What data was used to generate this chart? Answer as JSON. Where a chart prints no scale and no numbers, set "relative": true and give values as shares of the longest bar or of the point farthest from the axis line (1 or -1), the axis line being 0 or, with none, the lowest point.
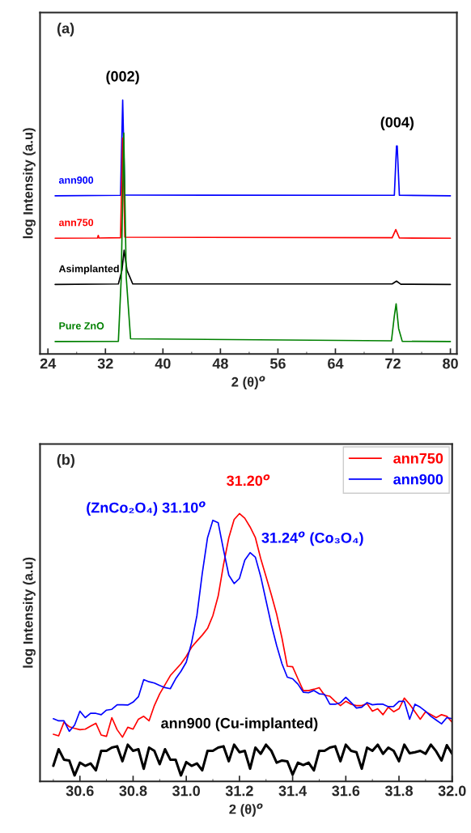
{
  "chart_data": [
    {
      "type": "line",
      "relative": true,
      "xlim": [
        22.9,
        80.9
      ],
      "xticks": [
        24,
        32,
        40,
        48,
        56,
        64,
        72,
        80
      ],
      "xlabel": "2 (θ)$^{o}$",
      "ylabel": "log Intensity (a.u)",
      "legend": false,
      "grid": false,
      "annotations": [
        "(a)",
        {
          "text": "(002)",
          "x": 34.4,
          "y": 1.0
        },
        {
          "text": "(004)",
          "x": 72.6,
          "y": 0.819
        }
      ],
      "series": [
        {
          "name": "ann900",
          "color": "#0000ff",
          "x": [
            25,
            34.1,
            34.4,
            34.7,
            72.2,
            72.5,
            72.6,
            72.9,
            80
          ],
          "values": [
            0.623,
            0.625,
            1.0,
            0.626,
            0.625,
            0.819,
            0.819,
            0.625,
            0.623
          ]
        },
        {
          "name": "ann750",
          "color": "#ff0000",
          "x": [
            25,
            30.9,
            31.0,
            31.1,
            34.1,
            34.4,
            34.7,
            71.9,
            72.4,
            72.9,
            80
          ],
          "values": [
            0.456,
            0.457,
            0.467,
            0.457,
            0.458,
            0.85,
            0.46,
            0.458,
            0.49,
            0.457,
            0.456
          ]
        },
        {
          "name": "Asimplanted",
          "color": "#000000",
          "x": [
            25,
            33.8,
            34.3,
            34.6,
            35.0,
            35.8,
            71.9,
            72.5,
            73.1,
            80
          ],
          "values": [
            0.274,
            0.276,
            0.33,
            0.409,
            0.33,
            0.276,
            0.276,
            0.287,
            0.275,
            0.274
          ]
        },
        {
          "name": "Pure ZnO",
          "color": "#008000",
          "x": [
            25,
            33.8,
            34.2,
            34.55,
            34.9,
            35.5,
            71.8,
            72.2,
            72.45,
            72.8,
            73.3,
            80
          ],
          "values": [
            0.049,
            0.05,
            0.3,
            0.87,
            0.3,
            0.06,
            0.052,
            0.15,
            0.198,
            0.1,
            0.05,
            0.049
          ]
        }
      ]
    },
    {
      "type": "line",
      "relative": true,
      "xlim": [
        30.45,
        32.0
      ],
      "xticks": [
        {
          "value": 30.6,
          "label": "30.6"
        },
        {
          "value": 30.8,
          "label": "30.8"
        },
        {
          "value": 31.0,
          "label": "31.0"
        },
        {
          "value": 31.2,
          "label": "31.2"
        },
        {
          "value": 31.4,
          "label": "31.4"
        },
        {
          "value": 31.6,
          "label": "31.6"
        },
        {
          "value": 31.8,
          "label": "31.8"
        },
        {
          "value": 32.0,
          "label": "32.0"
        }
      ],
      "xlabel": "2 (θ)$^{o}$",
      "ylabel": "log Intensity (a.u)",
      "legend": "top right",
      "grid": false,
      "annotations": [
        "(b)",
        {
          "text": "31.20$^{o}$",
          "x": 31.2,
          "y": 1.0
        },
        {
          "text": "(ZnCo₂O₄) 31.10$^{o}$",
          "x": 31.1,
          "y": 0.975
        },
        {
          "text": "31.24$^{o}$ (Co₃O₄)",
          "x": 31.24,
          "y": 0.854
        },
        {
          "text": "ann900 (Cu-implanted)",
          "x": 31.2,
          "y": 0.137
        }
      ],
      "x": [
        30.5,
        30.52,
        30.54,
        30.56,
        30.58,
        30.6,
        30.62,
        30.64,
        30.66,
        30.68,
        30.7,
        30.72,
        30.74,
        30.76,
        30.78,
        30.8,
        30.82,
        30.84,
        30.86,
        30.88,
        30.9,
        30.92,
        30.94,
        30.96,
        30.98,
        31.0,
        31.02,
        31.04,
        31.06,
        31.08,
        31.1,
        31.12,
        31.14,
        31.16,
        31.18,
        31.2,
        31.22,
        31.24,
        31.26,
        31.28,
        31.3,
        31.32,
        31.34,
        31.36,
        31.38,
        31.4,
        31.42,
        31.44,
        31.46,
        31.48,
        31.5,
        31.52,
        31.54,
        31.56,
        31.58,
        31.6,
        31.62,
        31.64,
        31.66,
        31.68,
        31.7,
        31.72,
        31.74,
        31.76,
        31.78,
        31.8,
        31.82,
        31.84,
        31.86,
        31.88,
        31.9,
        31.92,
        31.94,
        31.96,
        31.98,
        32.0
      ],
      "series": [
        {
          "name": "ann750",
          "color": "#ff0000",
          "values": [
            0.176,
            0.17,
            0.221,
            0.204,
            0.198,
            0.193,
            0.195,
            0.206,
            0.217,
            0.173,
            0.168,
            0.238,
            0.193,
            0.165,
            0.202,
            0.195,
            0.232,
            0.243,
            0.226,
            0.283,
            0.327,
            0.361,
            0.395,
            0.417,
            0.439,
            0.467,
            0.501,
            0.524,
            0.546,
            0.571,
            0.619,
            0.692,
            0.809,
            0.91,
            0.978,
            1.0,
            0.983,
            0.95,
            0.91,
            0.832,
            0.765,
            0.697,
            0.624,
            0.535,
            0.43,
            0.428,
            0.383,
            0.339,
            0.339,
            0.344,
            0.35,
            0.322,
            0.318,
            0.299,
            0.283,
            0.299,
            0.288,
            0.283,
            0.283,
            0.29,
            0.262,
            0.271,
            0.249,
            0.277,
            0.26,
            0.271,
            0.311,
            0.288,
            0.26,
            0.232,
            0.26,
            0.249,
            0.238,
            0.249,
            0.243,
            0.221
          ]
        },
        {
          "name": "ann900",
          "color": "#0000ff",
          "values": [
            0.234,
            0.226,
            0.226,
            0.187,
            0.21,
            0.262,
            0.238,
            0.254,
            0.254,
            0.249,
            0.266,
            0.269,
            0.286,
            0.286,
            0.285,
            0.296,
            0.316,
            0.38,
            0.372,
            0.367,
            0.358,
            0.35,
            0.346,
            0.383,
            0.411,
            0.445,
            0.518,
            0.619,
            0.776,
            0.91,
            0.975,
            0.966,
            0.865,
            0.77,
            0.739,
            0.758,
            0.826,
            0.854,
            0.837,
            0.765,
            0.675,
            0.585,
            0.507,
            0.439,
            0.389,
            0.383,
            0.363,
            0.333,
            0.331,
            0.339,
            0.327,
            0.325,
            0.288,
            0.288,
            0.294,
            0.314,
            0.294,
            0.274,
            0.277,
            0.294,
            0.286,
            0.288,
            0.288,
            0.279,
            0.28,
            0.299,
            0.299,
            0.232,
            0.288,
            0.277,
            0.262,
            0.243,
            0.229,
            0.215,
            0.238,
            0.234
          ]
        },
        {
          "color": "#000000",
          "values": [
            0.058,
            0.12,
            0.081,
            0.078,
            0.022,
            0.07,
            0.058,
            0.067,
            0.041,
            0.114,
            0.114,
            0.126,
            0.131,
            0.075,
            0.137,
            0.114,
            0.12,
            0.047,
            0.126,
            0.114,
            0.064,
            0.12,
            0.081,
            0.081,
            0.022,
            0.072,
            0.058,
            0.067,
            0.041,
            0.114,
            0.114,
            0.126,
            0.131,
            0.075,
            0.137,
            0.109,
            0.114,
            0.047,
            0.126,
            0.103,
            0.137,
            0.114,
            0.07,
            0.078,
            0.075,
            0.025,
            0.07,
            0.061,
            0.07,
            0.041,
            0.114,
            0.114,
            0.126,
            0.131,
            0.075,
            0.137,
            0.114,
            0.109,
            0.047,
            0.126,
            0.114,
            0.137,
            0.103,
            0.126,
            0.114,
            0.075,
            0.137,
            0.105,
            0.109,
            0.114,
            0.103,
            0.137,
            0.112,
            0.078,
            0.135,
            0.103
          ]
        }
      ]
    }
  ]
}
